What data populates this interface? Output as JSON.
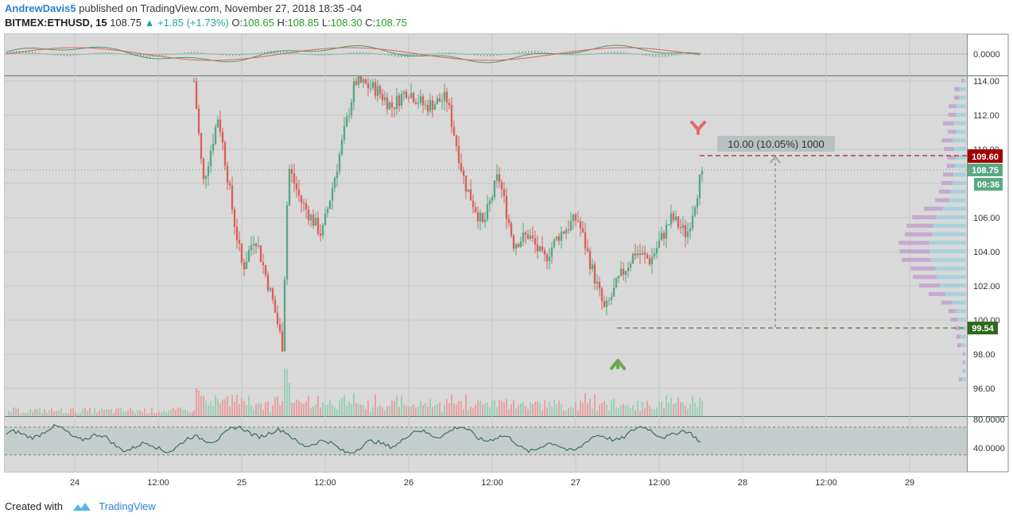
{
  "header": {
    "author": "AndrewDavis5",
    "published_text": "published on TradingView.com, November 27, 2018 18:35 -04",
    "symbol": "BITMEX:ETHUSD, 15",
    "last": "108.75",
    "change": "+1.85 (+1.73%)",
    "o_label": "O:",
    "o_value": "108.65",
    "h_label": "H:",
    "h_value": "108.85",
    "l_label": "L:",
    "l_value": "108.30",
    "c_label": "C:",
    "c_value": "108.75"
  },
  "footer": {
    "created_with": "Created with",
    "brand": "TradingView"
  },
  "colors": {
    "up": "#5aa884",
    "down": "#d9615f",
    "grid": "#c8c8c8",
    "bg": "#d9d9d9",
    "target_red": "#a00000",
    "target_green": "#2e6a1a",
    "last_price": "#5aa884"
  },
  "chart_data": {
    "type": "candlestick",
    "symbol": "BITMEX:ETHUSD",
    "interval": "15",
    "price_axis": {
      "ticks": [
        "114.00",
        "112.00",
        "110.00",
        "108.00",
        "106.00",
        "104.00",
        "102.00",
        "100.00",
        "98.00",
        "96.00"
      ],
      "range": [
        95,
        114.2
      ]
    },
    "time_axis": {
      "labels": [
        "24",
        "12:00",
        "25",
        "12:00",
        "26",
        "12:00",
        "27",
        "12:00",
        "28",
        "12:00",
        "29"
      ]
    },
    "macd_axis": {
      "ticks": [
        "0.0000"
      ]
    },
    "rsi_axis": {
      "ticks": [
        "80.0000",
        "40.0000"
      ]
    },
    "price_labels": {
      "target_high": "109.60",
      "last": "108.75",
      "countdown": "09:36",
      "target_low": "99.54"
    },
    "measure_label": "10.00 (10.05%) 1000",
    "anchors": [
      {
        "t": 0.0,
        "p": 114.0
      },
      {
        "t": 0.3,
        "p": 108.0
      },
      {
        "t": 0.8,
        "p": 112.0
      },
      {
        "t": 1.3,
        "p": 106.0
      },
      {
        "t": 1.6,
        "p": 103.0
      },
      {
        "t": 2.0,
        "p": 105.0
      },
      {
        "t": 2.6,
        "p": 101.0
      },
      {
        "t": 2.9,
        "p": 98.5
      },
      {
        "t": 3.1,
        "p": 109.0
      },
      {
        "t": 3.5,
        "p": 107.0
      },
      {
        "t": 4.2,
        "p": 105.0
      },
      {
        "t": 4.7,
        "p": 109.0
      },
      {
        "t": 5.3,
        "p": 114.0
      },
      {
        "t": 6.0,
        "p": 113.5
      },
      {
        "t": 6.5,
        "p": 112.5
      },
      {
        "t": 7.0,
        "p": 113.5
      },
      {
        "t": 7.6,
        "p": 112.5
      },
      {
        "t": 8.3,
        "p": 113.0
      },
      {
        "t": 8.9,
        "p": 108.0
      },
      {
        "t": 9.5,
        "p": 105.5
      },
      {
        "t": 10.0,
        "p": 108.5
      },
      {
        "t": 10.5,
        "p": 104.5
      },
      {
        "t": 11.0,
        "p": 105.0
      },
      {
        "t": 11.5,
        "p": 103.5
      },
      {
        "t": 12.0,
        "p": 105.0
      },
      {
        "t": 12.6,
        "p": 106.0
      },
      {
        "t": 13.0,
        "p": 103.5
      },
      {
        "t": 13.5,
        "p": 100.5
      },
      {
        "t": 14.0,
        "p": 102.5
      },
      {
        "t": 14.5,
        "p": 104.0
      },
      {
        "t": 15.0,
        "p": 103.5
      },
      {
        "t": 15.7,
        "p": 106.0
      },
      {
        "t": 16.2,
        "p": 105.0
      },
      {
        "t": 16.7,
        "p": 108.75
      }
    ]
  }
}
